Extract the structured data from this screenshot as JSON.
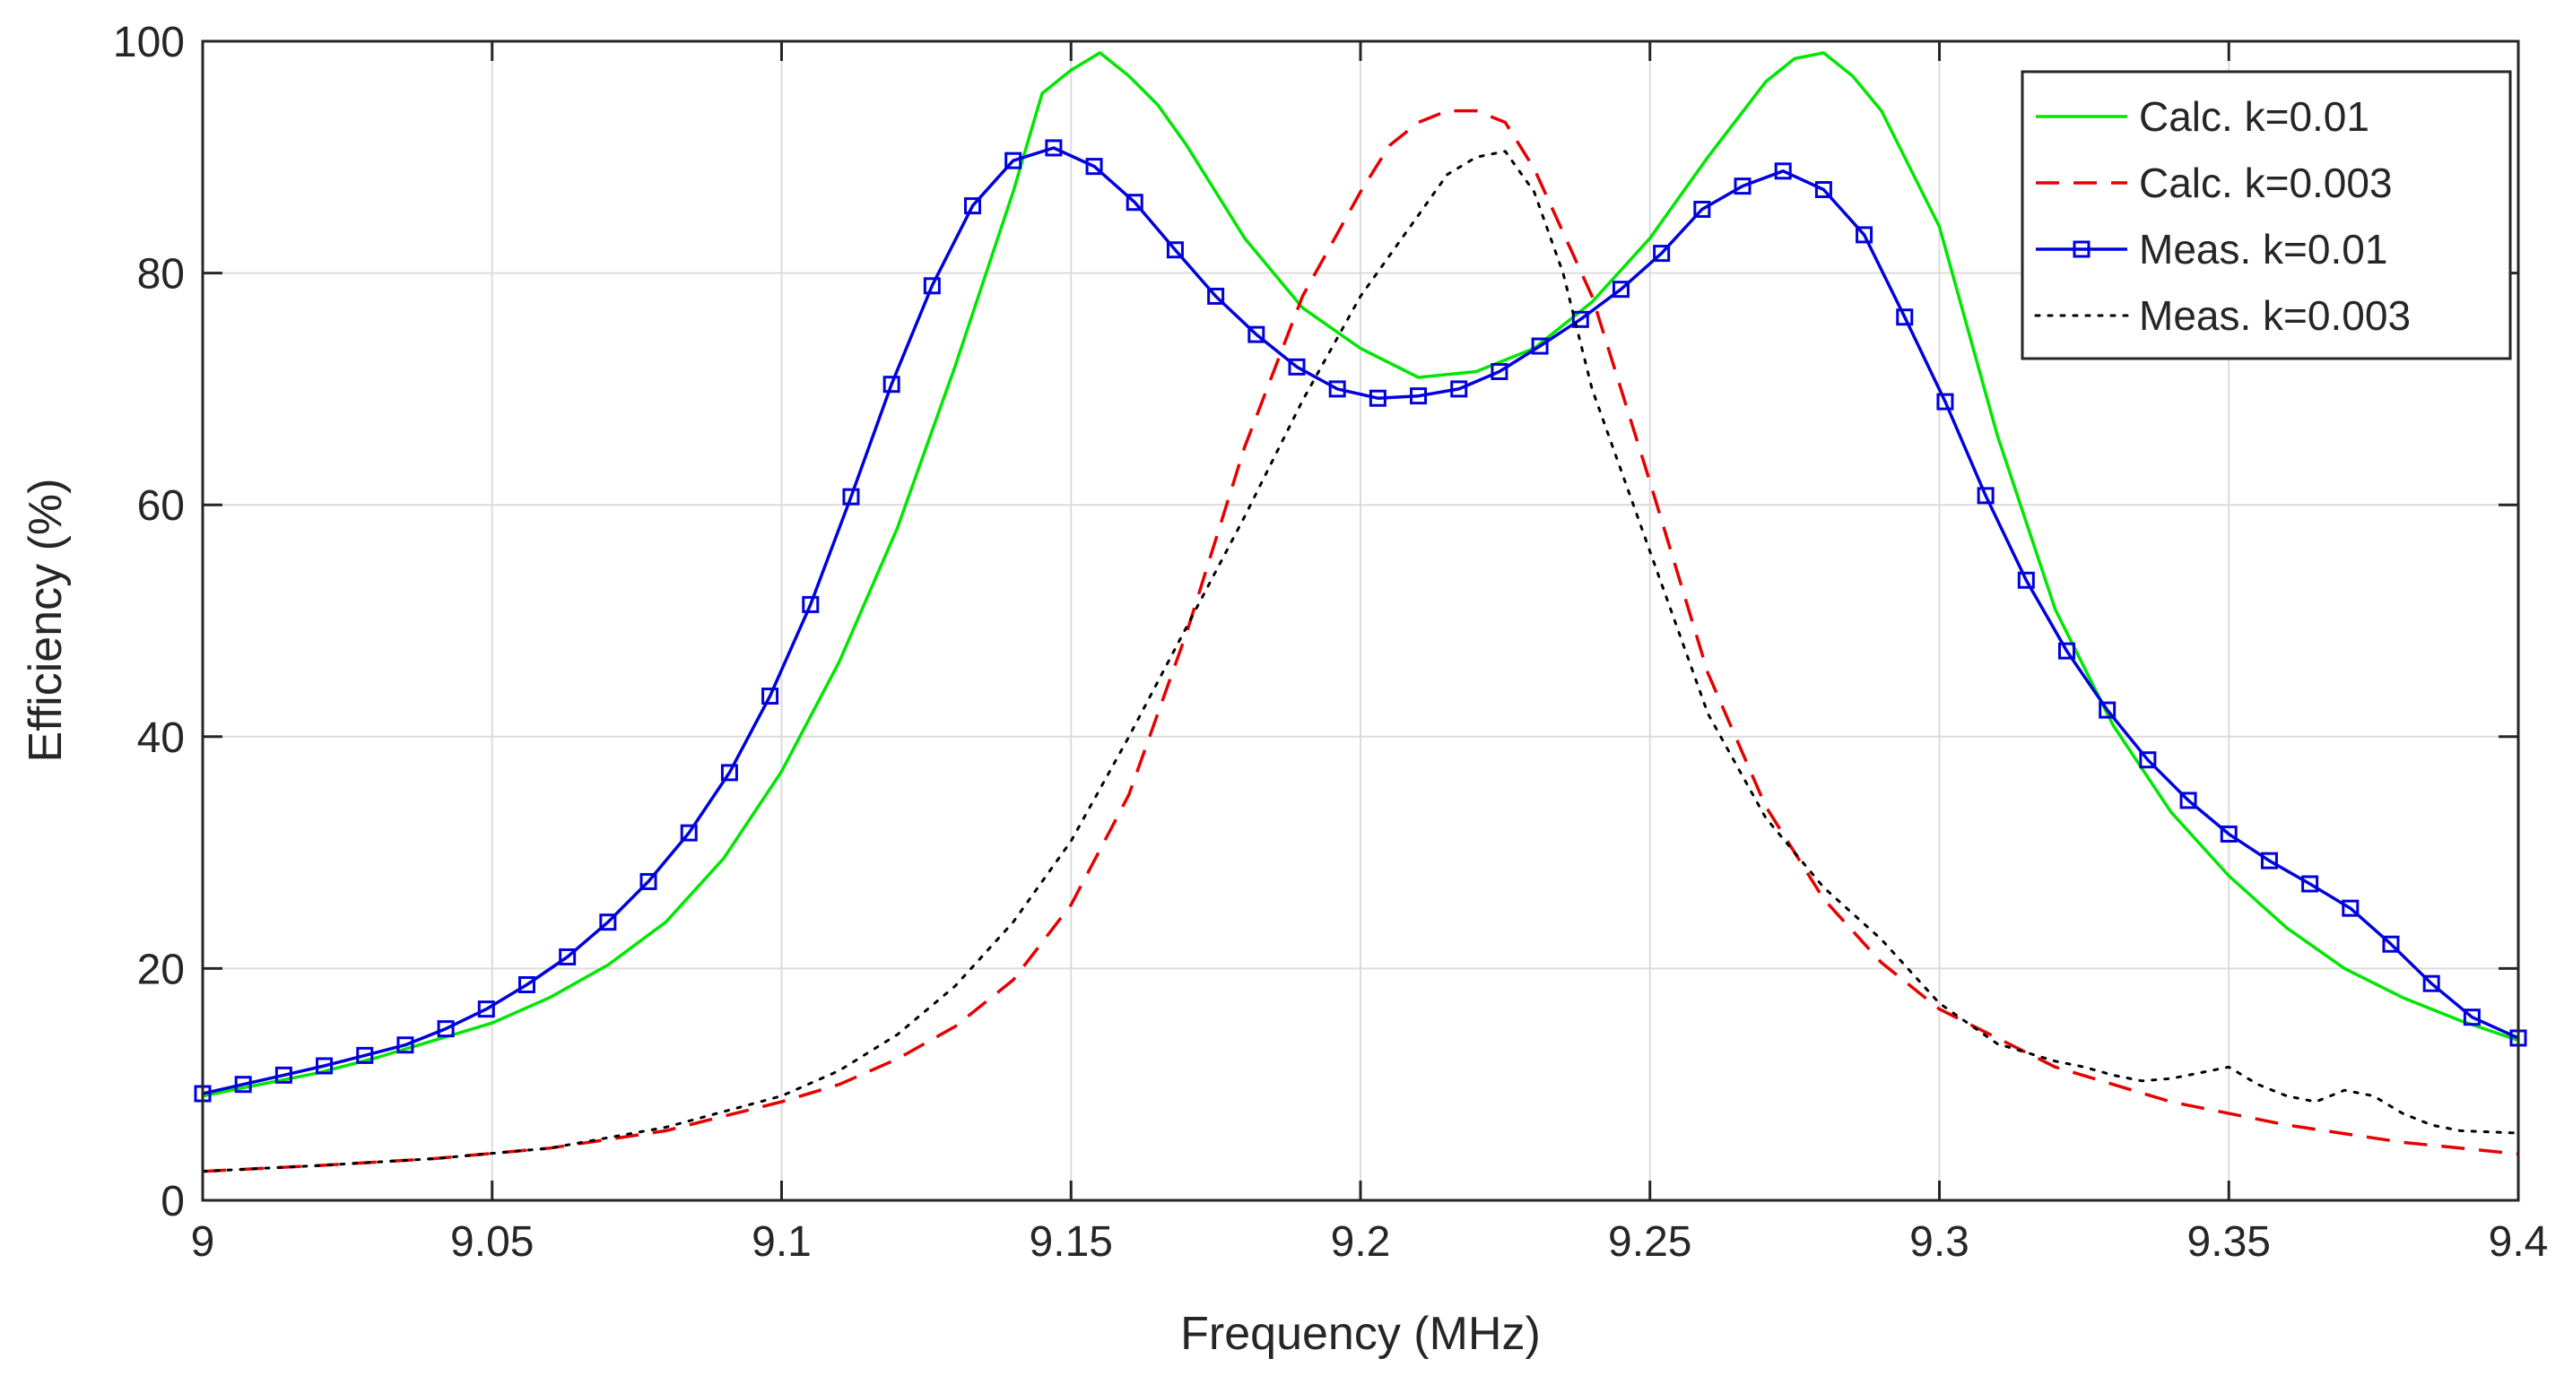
{
  "chart_data": {
    "type": "line",
    "title": "",
    "xlabel": "Frequency (MHz)",
    "ylabel": "Efficiency (%)",
    "xlim": [
      9.0,
      9.4
    ],
    "ylim": [
      0,
      100
    ],
    "xticks": [
      9.0,
      9.05,
      9.1,
      9.15,
      9.2,
      9.25,
      9.3,
      9.35,
      9.4
    ],
    "xtick_labels": [
      "9",
      "9.05",
      "9.1",
      "9.15",
      "9.2",
      "9.25",
      "9.3",
      "9.35",
      "9.4"
    ],
    "yticks": [
      0,
      20,
      40,
      60,
      80,
      100
    ],
    "ytick_labels": [
      "0",
      "20",
      "40",
      "60",
      "80",
      "100"
    ],
    "grid": true,
    "legend_position": "top-right",
    "series": [
      {
        "name": "Calc. k=0.01",
        "color": "#00e600",
        "style": "solid",
        "marker": "none",
        "x": [
          9.0,
          9.01,
          9.02,
          9.03,
          9.04,
          9.05,
          9.06,
          9.07,
          9.08,
          9.09,
          9.1,
          9.11,
          9.12,
          9.13,
          9.14,
          9.145,
          9.15,
          9.155,
          9.16,
          9.165,
          9.17,
          9.18,
          9.19,
          9.2,
          9.21,
          9.22,
          9.23,
          9.24,
          9.25,
          9.26,
          9.27,
          9.275,
          9.28,
          9.285,
          9.29,
          9.3,
          9.31,
          9.32,
          9.33,
          9.34,
          9.35,
          9.36,
          9.37,
          9.38,
          9.39,
          9.4
        ],
        "y": [
          9.0,
          10.0,
          11.0,
          12.3,
          13.8,
          15.3,
          17.5,
          20.3,
          24.0,
          29.5,
          37.0,
          46.5,
          58.0,
          72.0,
          87.0,
          95.5,
          97.5,
          99.0,
          97.0,
          94.5,
          91.0,
          83.0,
          77.0,
          73.5,
          71.0,
          71.5,
          73.5,
          77.5,
          83.0,
          90.0,
          96.5,
          98.5,
          99.0,
          97.0,
          94.0,
          84.0,
          66.0,
          51.0,
          41.0,
          33.5,
          28.0,
          23.5,
          20.0,
          17.5,
          15.5,
          13.8
        ]
      },
      {
        "name": "Calc. k=0.003",
        "color": "#e60000",
        "style": "dashed",
        "marker": "none",
        "x": [
          9.0,
          9.02,
          9.04,
          9.06,
          9.08,
          9.1,
          9.11,
          9.12,
          9.13,
          9.14,
          9.15,
          9.16,
          9.17,
          9.18,
          9.19,
          9.2,
          9.205,
          9.21,
          9.215,
          9.22,
          9.225,
          9.23,
          9.24,
          9.25,
          9.26,
          9.27,
          9.28,
          9.29,
          9.3,
          9.32,
          9.34,
          9.36,
          9.38,
          9.4
        ],
        "y": [
          2.5,
          3.0,
          3.6,
          4.5,
          6.0,
          8.5,
          10.0,
          12.2,
          15.0,
          19.0,
          25.5,
          35.0,
          49.0,
          65.0,
          78.0,
          87.0,
          91.0,
          93.0,
          94.0,
          94.0,
          93.0,
          89.0,
          78.0,
          62.0,
          45.5,
          34.0,
          26.0,
          20.5,
          16.5,
          11.5,
          8.5,
          6.5,
          5.0,
          4.0
        ]
      },
      {
        "name": "Meas. k=0.01",
        "color": "#0000dd",
        "style": "solid",
        "marker": "square",
        "x": [
          9.0,
          9.007,
          9.014,
          9.021,
          9.028,
          9.035,
          9.042,
          9.049,
          9.056,
          9.063,
          9.07,
          9.077,
          9.084,
          9.091,
          9.098,
          9.105,
          9.112,
          9.119,
          9.126,
          9.133,
          9.14,
          9.147,
          9.154,
          9.161,
          9.168,
          9.175,
          9.182,
          9.189,
          9.196,
          9.203,
          9.21,
          9.217,
          9.224,
          9.231,
          9.238,
          9.245,
          9.252,
          9.259,
          9.266,
          9.273,
          9.28,
          9.287,
          9.294,
          9.301,
          9.308,
          9.315,
          9.322,
          9.329,
          9.336,
          9.343,
          9.35,
          9.357,
          9.364,
          9.371,
          9.378,
          9.385,
          9.392,
          9.4
        ],
        "y": [
          9.2,
          10.0,
          10.8,
          11.6,
          12.5,
          13.4,
          14.8,
          16.5,
          18.6,
          21.0,
          24.0,
          27.5,
          31.7,
          36.9,
          43.5,
          51.4,
          60.7,
          70.4,
          78.9,
          85.8,
          89.7,
          90.8,
          89.2,
          86.1,
          82.0,
          78.0,
          74.7,
          71.9,
          70.0,
          69.2,
          69.4,
          70.0,
          71.5,
          73.7,
          76.0,
          78.6,
          81.7,
          85.5,
          87.5,
          88.8,
          87.2,
          83.3,
          76.2,
          68.9,
          60.8,
          53.5,
          47.4,
          42.3,
          38.0,
          34.5,
          31.6,
          29.3,
          27.3,
          25.2,
          22.1,
          18.7,
          15.8,
          14.0
        ]
      },
      {
        "name": "Meas. k=0.003",
        "color": "#000000",
        "style": "dotted",
        "marker": "none",
        "x": [
          9.0,
          9.02,
          9.04,
          9.06,
          9.08,
          9.1,
          9.11,
          9.12,
          9.13,
          9.14,
          9.15,
          9.16,
          9.17,
          9.18,
          9.19,
          9.2,
          9.21,
          9.215,
          9.22,
          9.225,
          9.23,
          9.235,
          9.24,
          9.25,
          9.26,
          9.27,
          9.28,
          9.29,
          9.3,
          9.31,
          9.32,
          9.325,
          9.33,
          9.335,
          9.34,
          9.345,
          9.35,
          9.355,
          9.36,
          9.365,
          9.37,
          9.375,
          9.38,
          9.385,
          9.39,
          9.4
        ],
        "y": [
          2.5,
          3.0,
          3.6,
          4.5,
          6.3,
          9.0,
          11.2,
          14.3,
          18.5,
          24.0,
          31.0,
          40.0,
          49.5,
          59.0,
          69.0,
          78.0,
          85.0,
          88.5,
          90.0,
          90.5,
          87.0,
          80.0,
          70.0,
          56.0,
          42.0,
          33.0,
          27.0,
          22.5,
          17.0,
          13.5,
          12.0,
          11.5,
          10.8,
          10.3,
          10.5,
          11.0,
          11.5,
          10.0,
          9.0,
          8.5,
          9.5,
          9.0,
          7.5,
          6.5,
          6.0,
          5.8
        ]
      }
    ]
  }
}
